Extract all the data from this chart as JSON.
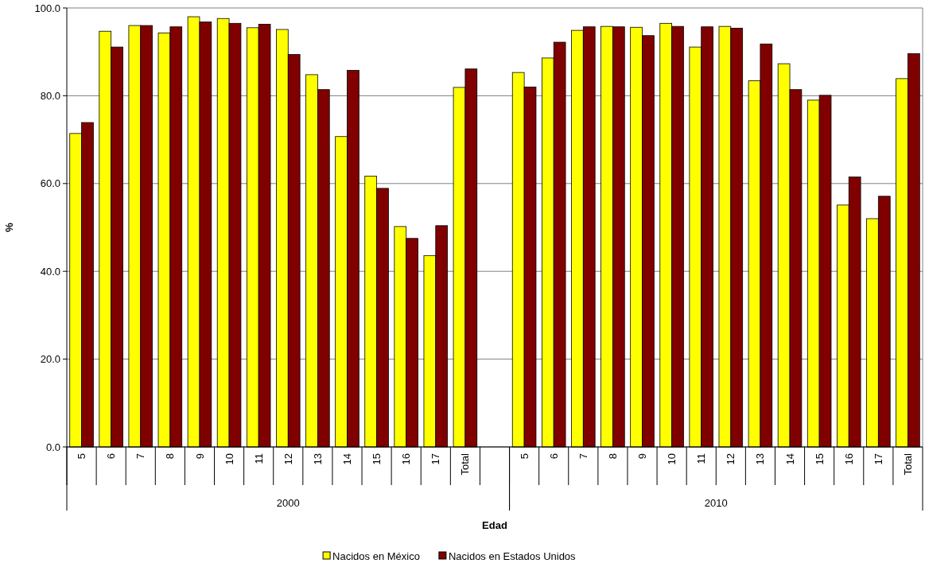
{
  "chart_data": {
    "type": "bar",
    "xlabel": "Edad",
    "ylabel": "%",
    "categories": [
      "5",
      "6",
      "7",
      "8",
      "9",
      "10",
      "11",
      "12",
      "13",
      "14",
      "15",
      "16",
      "17",
      "Total",
      null,
      "5",
      "6",
      "7",
      "8",
      "9",
      "10",
      "11",
      "12",
      "13",
      "14",
      "15",
      "16",
      "17",
      "Total"
    ],
    "series": [
      {
        "name": "Nacidos en México",
        "color": "#ffff00",
        "values": [
          71.4,
          94.7,
          96.0,
          94.3,
          98.0,
          97.6,
          95.5,
          95.1,
          84.8,
          70.7,
          61.7,
          50.2,
          43.6,
          81.9,
          null,
          85.3,
          88.6,
          94.9,
          95.8,
          95.6,
          96.5,
          91.1,
          95.8,
          83.4,
          87.3,
          79.0,
          55.1,
          52.0,
          83.9
        ]
      },
      {
        "name": "Nacidos en Estados Unidos",
        "color": "#800000",
        "values": [
          73.9,
          91.1,
          96.0,
          95.7,
          96.8,
          96.5,
          96.3,
          89.4,
          81.4,
          85.8,
          58.9,
          47.5,
          50.4,
          86.1,
          null,
          82.0,
          92.2,
          95.7,
          95.7,
          93.7,
          95.8,
          95.7,
          95.4,
          91.8,
          81.4,
          80.1,
          61.5,
          57.1,
          89.6
        ]
      }
    ],
    "annotations": [
      "2000",
      "2010"
    ],
    "ylim": [
      0,
      100
    ],
    "yticks": [
      {
        "value": 0,
        "label": "0.0"
      },
      {
        "value": 20,
        "label": "20.0"
      },
      {
        "value": 40,
        "label": "40.0"
      },
      {
        "value": 60,
        "label": "60.0"
      },
      {
        "value": 80,
        "label": "80.0"
      },
      {
        "value": 100,
        "label": "100.0"
      }
    ],
    "grid": "y",
    "legend": "bottom"
  }
}
